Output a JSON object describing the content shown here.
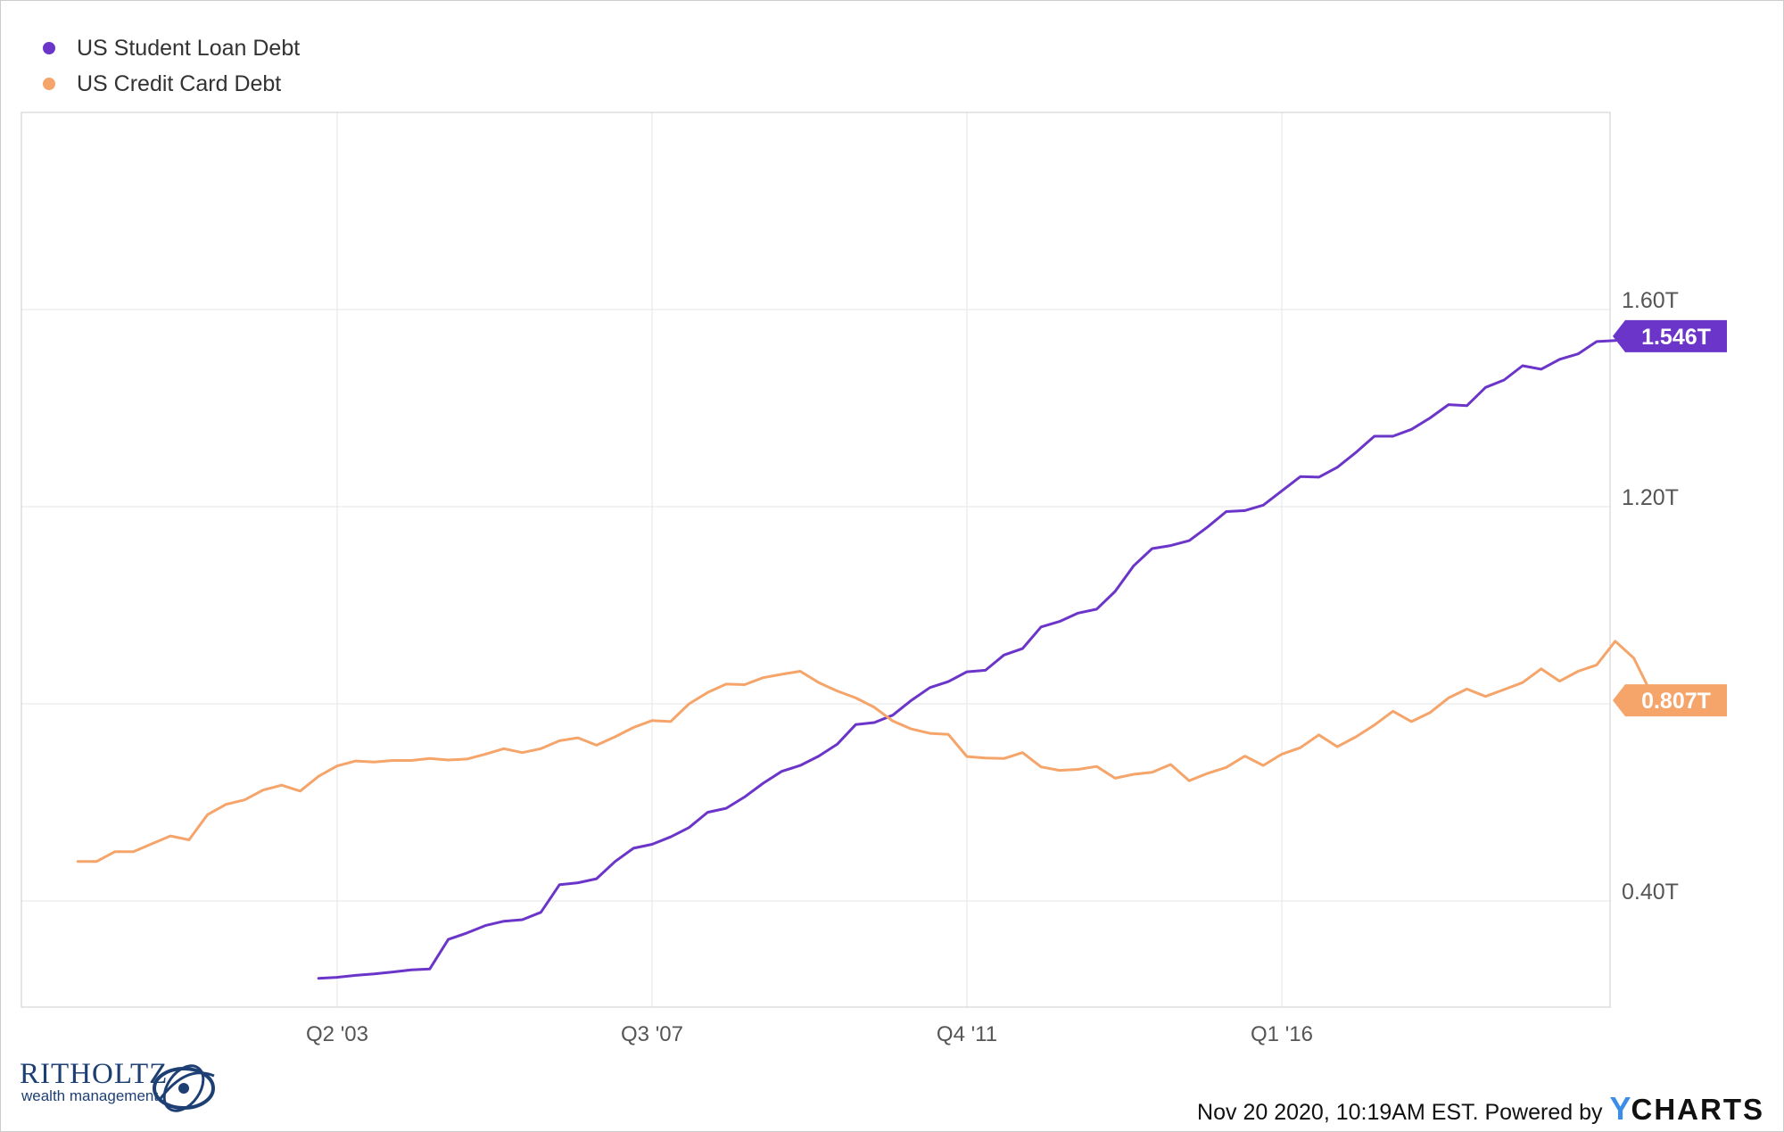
{
  "chart_data": {
    "type": "line",
    "title": "",
    "xlabel": "",
    "ylabel": "",
    "x_ticks": [
      "Q2 '03",
      "Q3 '07",
      "Q4 '11",
      "Q1 '16"
    ],
    "y_ticks": [
      "0.40T",
      "1.20T",
      "1.60T"
    ],
    "ylim": [
      0.17,
      1.99
    ],
    "x_range": [
      1999.75,
      2020.75
    ],
    "y_unit": "T",
    "grid": true,
    "legend_position": "top-left",
    "series": [
      {
        "name": "US Student Loan Debt",
        "color": "#6b35c9",
        "last_value_label": "1.546T",
        "points": [
          [
            2003.0,
            0.243
          ],
          [
            2003.25,
            0.245
          ],
          [
            2003.5,
            0.249
          ],
          [
            2003.75,
            0.252
          ],
          [
            2004.0,
            0.256
          ],
          [
            2004.25,
            0.26
          ],
          [
            2004.5,
            0.262
          ],
          [
            2004.75,
            0.322
          ],
          [
            2005.0,
            0.335
          ],
          [
            2005.25,
            0.35
          ],
          [
            2005.5,
            0.359
          ],
          [
            2005.75,
            0.362
          ],
          [
            2006.0,
            0.377
          ],
          [
            2006.25,
            0.433
          ],
          [
            2006.5,
            0.437
          ],
          [
            2006.75,
            0.445
          ],
          [
            2007.0,
            0.48
          ],
          [
            2007.25,
            0.507
          ],
          [
            2007.5,
            0.515
          ],
          [
            2007.75,
            0.53
          ],
          [
            2008.0,
            0.549
          ],
          [
            2008.25,
            0.58
          ],
          [
            2008.5,
            0.588
          ],
          [
            2008.75,
            0.611
          ],
          [
            2009.0,
            0.639
          ],
          [
            2009.25,
            0.663
          ],
          [
            2009.5,
            0.675
          ],
          [
            2009.75,
            0.694
          ],
          [
            2010.0,
            0.718
          ],
          [
            2010.25,
            0.758
          ],
          [
            2010.5,
            0.762
          ],
          [
            2010.75,
            0.777
          ],
          [
            2011.0,
            0.807
          ],
          [
            2011.25,
            0.833
          ],
          [
            2011.5,
            0.845
          ],
          [
            2011.75,
            0.865
          ],
          [
            2012.0,
            0.868
          ],
          [
            2012.25,
            0.899
          ],
          [
            2012.5,
            0.912
          ],
          [
            2012.75,
            0.956
          ],
          [
            2013.0,
            0.967
          ],
          [
            2013.25,
            0.984
          ],
          [
            2013.5,
            0.992
          ],
          [
            2013.75,
            1.028
          ],
          [
            2014.0,
            1.08
          ],
          [
            2014.25,
            1.115
          ],
          [
            2014.5,
            1.121
          ],
          [
            2014.75,
            1.131
          ],
          [
            2015.0,
            1.159
          ],
          [
            2015.25,
            1.19
          ],
          [
            2015.5,
            1.192
          ],
          [
            2015.75,
            1.203
          ],
          [
            2016.0,
            1.232
          ],
          [
            2016.25,
            1.261
          ],
          [
            2016.5,
            1.26
          ],
          [
            2016.75,
            1.28
          ],
          [
            2017.0,
            1.31
          ],
          [
            2017.25,
            1.343
          ],
          [
            2017.5,
            1.343
          ],
          [
            2017.75,
            1.357
          ],
          [
            2018.0,
            1.38
          ],
          [
            2018.25,
            1.407
          ],
          [
            2018.5,
            1.405
          ],
          [
            2018.75,
            1.442
          ],
          [
            2019.0,
            1.457
          ],
          [
            2019.25,
            1.486
          ],
          [
            2019.5,
            1.479
          ],
          [
            2019.75,
            1.499
          ],
          [
            2020.0,
            1.51
          ],
          [
            2020.25,
            1.535
          ],
          [
            2020.5,
            1.537
          ],
          [
            2020.75,
            1.546
          ]
        ]
      },
      {
        "name": "US Credit Card Debt",
        "color": "#f5a46a",
        "last_value_label": "0.807T",
        "points": [
          [
            1999.75,
            0.48
          ],
          [
            2000.0,
            0.48
          ],
          [
            2000.25,
            0.5
          ],
          [
            2000.5,
            0.5
          ],
          [
            2000.75,
            0.516
          ],
          [
            2001.0,
            0.532
          ],
          [
            2001.25,
            0.524
          ],
          [
            2001.5,
            0.575
          ],
          [
            2001.75,
            0.596
          ],
          [
            2002.0,
            0.605
          ],
          [
            2002.25,
            0.625
          ],
          [
            2002.5,
            0.635
          ],
          [
            2002.75,
            0.623
          ],
          [
            2003.0,
            0.653
          ],
          [
            2003.25,
            0.674
          ],
          [
            2003.5,
            0.684
          ],
          [
            2003.75,
            0.682
          ],
          [
            2004.0,
            0.685
          ],
          [
            2004.25,
            0.685
          ],
          [
            2004.5,
            0.689
          ],
          [
            2004.75,
            0.686
          ],
          [
            2005.0,
            0.688
          ],
          [
            2005.25,
            0.698
          ],
          [
            2005.5,
            0.709
          ],
          [
            2005.75,
            0.701
          ],
          [
            2006.0,
            0.709
          ],
          [
            2006.25,
            0.725
          ],
          [
            2006.5,
            0.731
          ],
          [
            2006.75,
            0.716
          ],
          [
            2007.0,
            0.733
          ],
          [
            2007.25,
            0.752
          ],
          [
            2007.5,
            0.766
          ],
          [
            2007.75,
            0.764
          ],
          [
            2008.0,
            0.8
          ],
          [
            2008.25,
            0.823
          ],
          [
            2008.5,
            0.84
          ],
          [
            2008.75,
            0.839
          ],
          [
            2009.0,
            0.853
          ],
          [
            2009.25,
            0.86
          ],
          [
            2009.5,
            0.866
          ],
          [
            2009.75,
            0.843
          ],
          [
            2010.0,
            0.826
          ],
          [
            2010.25,
            0.812
          ],
          [
            2010.5,
            0.793
          ],
          [
            2010.75,
            0.765
          ],
          [
            2011.0,
            0.749
          ],
          [
            2011.25,
            0.74
          ],
          [
            2011.5,
            0.738
          ],
          [
            2011.75,
            0.693
          ],
          [
            2012.0,
            0.69
          ],
          [
            2012.25,
            0.689
          ],
          [
            2012.5,
            0.701
          ],
          [
            2012.75,
            0.672
          ],
          [
            2013.0,
            0.665
          ],
          [
            2013.25,
            0.667
          ],
          [
            2013.5,
            0.673
          ],
          [
            2013.75,
            0.649
          ],
          [
            2014.0,
            0.657
          ],
          [
            2014.25,
            0.661
          ],
          [
            2014.5,
            0.677
          ],
          [
            2014.75,
            0.644
          ],
          [
            2015.0,
            0.659
          ],
          [
            2015.25,
            0.671
          ],
          [
            2015.5,
            0.694
          ],
          [
            2015.75,
            0.675
          ],
          [
            2016.0,
            0.698
          ],
          [
            2016.25,
            0.711
          ],
          [
            2016.5,
            0.737
          ],
          [
            2016.75,
            0.713
          ],
          [
            2017.0,
            0.733
          ],
          [
            2017.25,
            0.757
          ],
          [
            2017.5,
            0.785
          ],
          [
            2017.75,
            0.764
          ],
          [
            2018.0,
            0.782
          ],
          [
            2018.25,
            0.812
          ],
          [
            2018.5,
            0.83
          ],
          [
            2018.75,
            0.815
          ],
          [
            2019.0,
            0.829
          ],
          [
            2019.25,
            0.843
          ],
          [
            2019.5,
            0.871
          ],
          [
            2019.75,
            0.846
          ],
          [
            2020.0,
            0.866
          ],
          [
            2020.25,
            0.879
          ],
          [
            2020.5,
            0.927
          ],
          [
            2020.75,
            0.893
          ],
          [
            2021.0,
            0.817
          ],
          [
            2021.25,
            0.807
          ]
        ]
      }
    ]
  },
  "footer": {
    "logo_main": "RITHOLTZ",
    "logo_sub": "wealth management",
    "credit_text": "Nov 20 2020, 10:19AM EST. Powered by",
    "ycharts_y": "Y",
    "ycharts_rest": "CHARTS"
  },
  "colors": {
    "student_loan": "#6b35c9",
    "credit_card": "#f5a46a",
    "grid": "#e6e6e6",
    "axis_text": "#555555",
    "ycharts_blue": "#3b8de8",
    "logo_navy": "#1e3f73"
  }
}
